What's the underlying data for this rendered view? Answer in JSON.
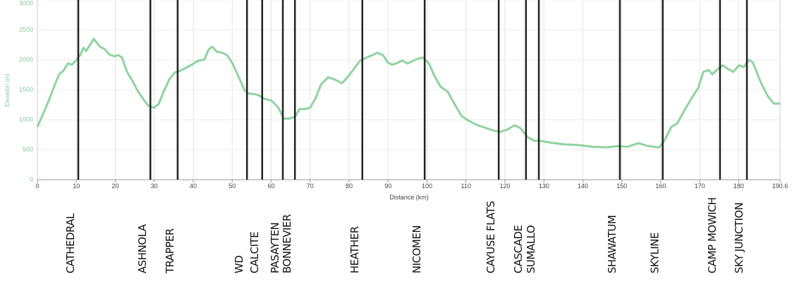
{
  "chart_data": {
    "type": "line",
    "x_label": "Distance (km)",
    "y_label": "Elevation (m)",
    "xlim": [
      0,
      190.6
    ],
    "ylim": [
      0,
      3000
    ],
    "xticks": [
      0,
      10,
      20,
      30,
      40,
      50,
      60,
      70,
      80,
      90,
      100,
      110,
      120,
      130,
      140,
      150,
      160,
      170,
      180,
      190.6
    ],
    "yticks": [
      0,
      500,
      1000,
      1500,
      2000,
      2500,
      3000
    ],
    "grid": true,
    "series": [
      {
        "color": "#8fd3a0",
        "x": [
          0,
          1.6,
          3.1,
          4.5,
          5.6,
          6.7,
          7.8,
          8.9,
          10.0,
          11.0,
          11.8,
          12.5,
          13.4,
          14.5,
          15.2,
          16.1,
          17.2,
          18.5,
          19.7,
          20.8,
          21.7,
          23.0,
          24.4,
          25.7,
          27.1,
          28.4,
          29.9,
          31.1,
          32.4,
          33.9,
          35.3,
          36.7,
          38.2,
          39.6,
          41.1,
          42.9,
          44.0,
          44.9,
          46.0,
          47.4,
          48.7,
          50.1,
          51.9,
          53.2,
          54.1,
          55.6,
          56.8,
          58.3,
          60.1,
          61.9,
          63.2,
          64.6,
          66.1,
          67.3,
          68.6,
          70.0,
          71.3,
          72.8,
          74.6,
          76.4,
          78.2,
          79.6,
          80.9,
          82.7,
          84.5,
          86.0,
          87.2,
          88.7,
          89.9,
          91.0,
          92.1,
          93.6,
          95.0,
          96.3,
          97.6,
          99.0,
          100.5,
          101.7,
          103.5,
          105.3,
          107.1,
          108.9,
          110.8,
          112.6,
          115.3,
          117.1,
          118.9,
          120.7,
          122.5,
          124.0,
          125.8,
          127.6,
          128.9,
          131.6,
          135.2,
          138.8,
          142.4,
          146.1,
          148.8,
          151.5,
          154.2,
          156.9,
          159.6,
          160.9,
          162.7,
          164.2,
          166.0,
          167.8,
          169.6,
          170.9,
          172.3,
          173.2,
          174.7,
          175.9,
          177.2,
          178.6,
          180.1,
          181.3,
          182.6,
          183.6,
          185.5,
          187.3,
          189.0,
          190.6
        ],
        "values": [
          880,
          1120,
          1350,
          1590,
          1760,
          1820,
          1940,
          1920,
          2000,
          2080,
          2200,
          2150,
          2240,
          2350,
          2290,
          2220,
          2180,
          2090,
          2060,
          2080,
          2040,
          1800,
          1650,
          1490,
          1350,
          1240,
          1200,
          1260,
          1470,
          1680,
          1790,
          1820,
          1870,
          1920,
          1980,
          2010,
          2180,
          2220,
          2140,
          2120,
          2080,
          1940,
          1680,
          1490,
          1440,
          1430,
          1410,
          1350,
          1320,
          1200,
          1020,
          1020,
          1050,
          1180,
          1180,
          1200,
          1350,
          1590,
          1710,
          1670,
          1610,
          1710,
          1820,
          1980,
          2040,
          2080,
          2120,
          2080,
          1960,
          1920,
          1940,
          1990,
          1940,
          1980,
          2020,
          2040,
          1940,
          1760,
          1550,
          1470,
          1260,
          1060,
          980,
          920,
          860,
          820,
          800,
          840,
          910,
          860,
          710,
          650,
          650,
          620,
          590,
          580,
          550,
          540,
          560,
          550,
          610,
          560,
          540,
          650,
          880,
          940,
          1150,
          1350,
          1530,
          1800,
          1830,
          1760,
          1850,
          1910,
          1850,
          1800,
          1910,
          1880,
          2000,
          1960,
          1650,
          1410,
          1270,
          1270
        ]
      }
    ],
    "markers": [
      {
        "name": "CATHEDRAL",
        "km": 10.5
      },
      {
        "name": "ASHNOLA",
        "km": 29.0
      },
      {
        "name": "TRAPPER",
        "km": 36.0
      },
      {
        "name": "WD",
        "km": 53.8
      },
      {
        "name": "CALCITE",
        "km": 57.7
      },
      {
        "name": "PASAYTEN",
        "km": 63.0
      },
      {
        "name": "BONNEVIER",
        "km": 66.1
      },
      {
        "name": "HEATHER",
        "km": 83.4
      },
      {
        "name": "NICOMEN",
        "km": 99.4
      },
      {
        "name": "CAYUSE FLATS",
        "km": 118.4
      },
      {
        "name": "CASCADE",
        "km": 125.4
      },
      {
        "name": "SUMALLO",
        "km": 128.7
      },
      {
        "name": "SHAWATUM",
        "km": 149.5
      },
      {
        "name": "SKYLINE",
        "km": 160.5
      },
      {
        "name": "CAMP MOWICH",
        "km": 175.2
      },
      {
        "name": "SKY JUNCTION",
        "km": 182.1
      }
    ]
  }
}
